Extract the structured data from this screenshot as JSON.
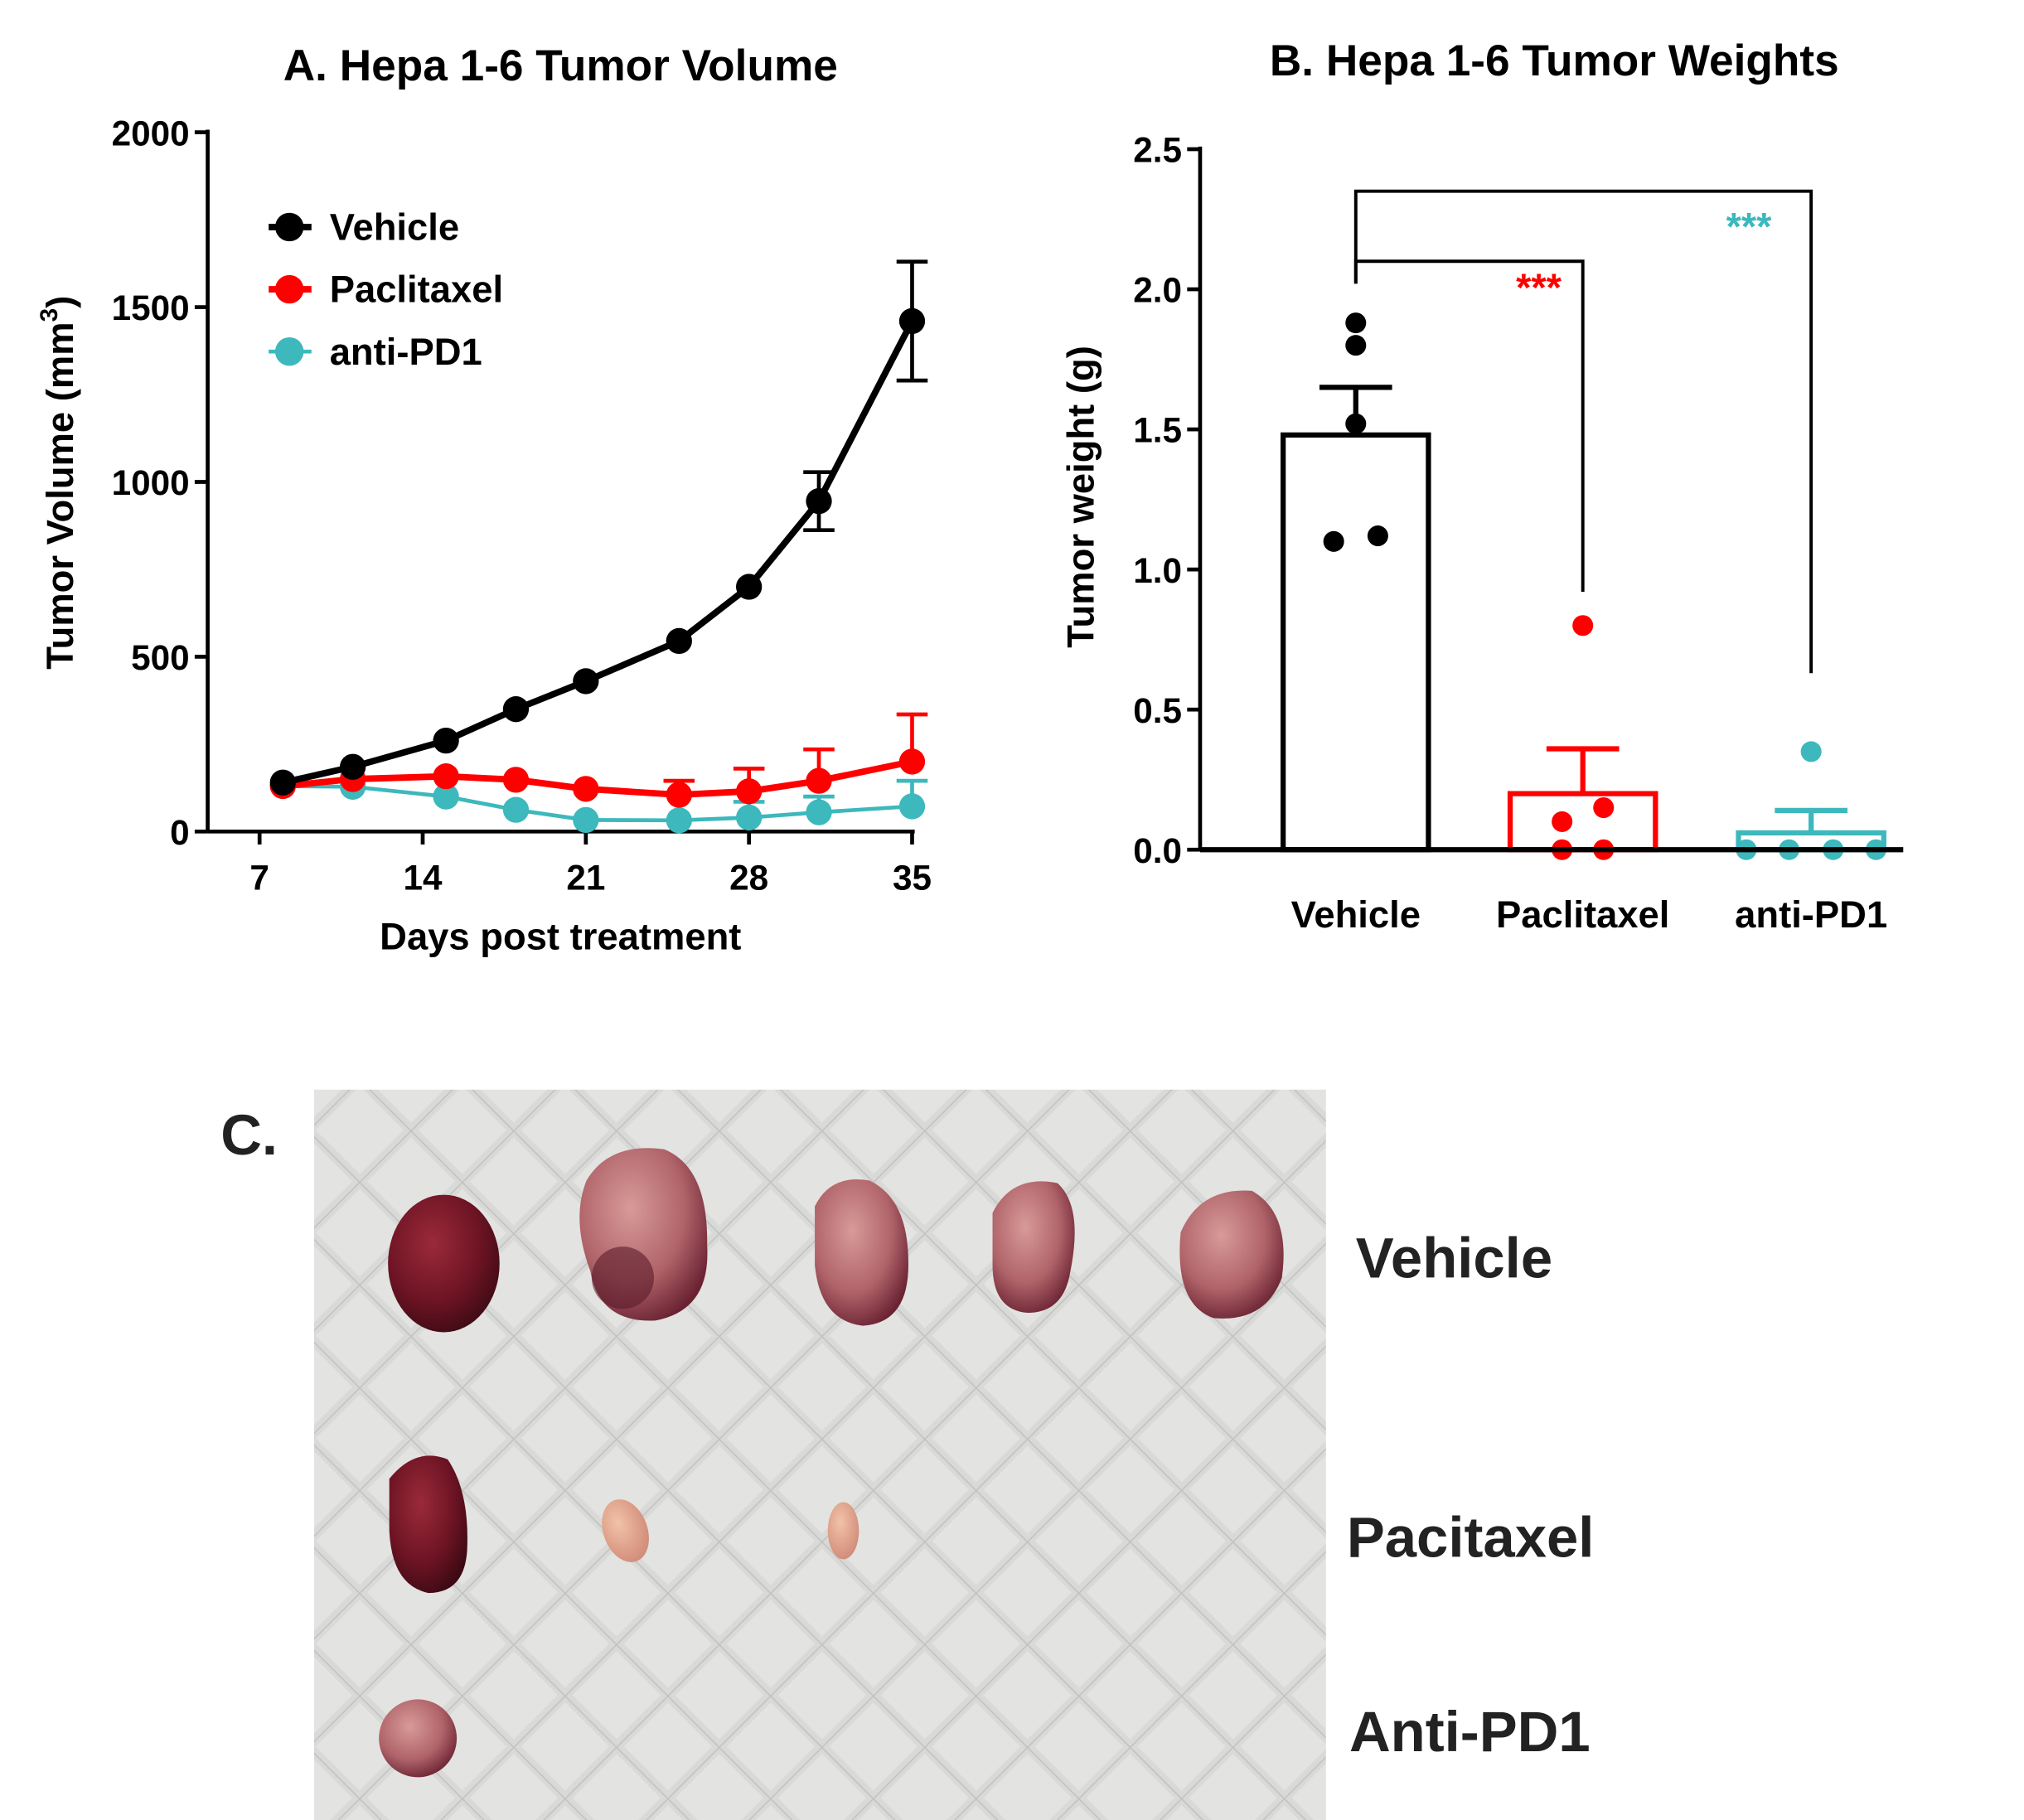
{
  "colors": {
    "vehicle": "#000000",
    "paclitaxel": "#ff0000",
    "anti_pd1": "#3db8bd"
  },
  "chart_data": [
    {
      "type": "line",
      "title": "A. Hepa 1-6 Tumor Volume",
      "xlabel": "Days post treatment",
      "ylabel": "Tumor Volume (mm",
      "ylabel_sup": "3",
      "ylabel_close": ")",
      "xlim": [
        7,
        35
      ],
      "ylim": [
        0,
        2000
      ],
      "xticks": [
        7,
        14,
        21,
        28,
        35
      ],
      "yticks": [
        0,
        500,
        1000,
        1500,
        2000
      ],
      "legend_position": "top-left",
      "x": [
        8,
        11,
        15,
        18,
        21,
        25,
        28,
        31,
        35
      ],
      "series": [
        {
          "name": "Vehicle",
          "color_key": "vehicle",
          "values": [
            140,
            185,
            260,
            350,
            430,
            545,
            700,
            945,
            1460
          ],
          "sem": [
            0,
            0,
            0,
            0,
            0,
            0,
            0,
            83,
            170
          ],
          "error_style": "both"
        },
        {
          "name": "Paclitaxel",
          "color_key": "paclitaxel",
          "values": [
            130,
            150,
            158,
            148,
            122,
            105,
            115,
            145,
            200
          ],
          "sem": [
            0,
            0,
            0,
            0,
            0,
            40,
            65,
            90,
            135
          ],
          "error_style": "upper"
        },
        {
          "name": "anti-PD1",
          "color_key": "anti_pd1",
          "values": [
            130,
            128,
            100,
            62,
            33,
            32,
            40,
            55,
            72
          ],
          "sem": [
            0,
            0,
            0,
            0,
            0,
            0,
            45,
            45,
            73
          ],
          "error_style": "upper"
        }
      ]
    },
    {
      "type": "bar",
      "title": "B. Hepa 1-6 Tumor Weights",
      "ylabel": "Tumor weight (g)",
      "ylim": [
        0,
        2.5
      ],
      "yticks": [
        "0.0",
        "0.5",
        "1.0",
        "1.5",
        "2.0",
        "2.5"
      ],
      "categories": [
        "Vehicle",
        "Paclitaxel",
        "anti-PD1"
      ],
      "values": [
        1.48,
        0.2,
        0.06
      ],
      "sem": [
        0.17,
        0.16,
        0.08
      ],
      "points": [
        [
          1.88,
          1.8,
          1.52,
          1.1,
          1.12
        ],
        [
          0.8,
          0.1,
          0.15,
          0.0,
          0.0
        ],
        [
          0.35,
          0.0,
          0.0,
          0.0,
          0.0
        ]
      ],
      "color_keys": [
        "vehicle",
        "paclitaxel",
        "anti_pd1"
      ],
      "significance": [
        {
          "from": "Vehicle",
          "to": "Paclitaxel",
          "label": "***",
          "color_key": "paclitaxel"
        },
        {
          "from": "Vehicle",
          "to": "anti-PD1",
          "label": "***",
          "color_key": "anti_pd1"
        }
      ]
    }
  ],
  "panel_c": {
    "label": "C.",
    "row_labels": [
      "Vehicle",
      "Pacitaxel",
      "Anti-PD1"
    ]
  }
}
